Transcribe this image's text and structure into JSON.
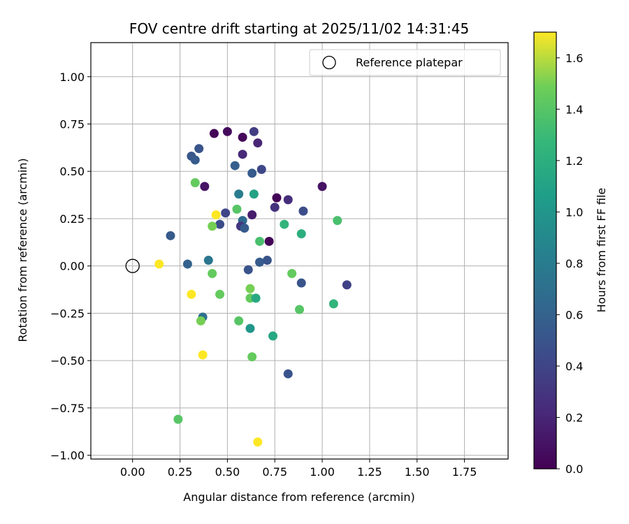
{
  "chart_data": {
    "type": "scatter",
    "title": "FOV centre drift starting at 2025/11/02 14:31:45",
    "xlabel": "Angular distance from reference (arcmin)",
    "ylabel": "Rotation from reference (arcmin)",
    "xlim": [
      -0.22,
      1.98
    ],
    "ylim": [
      -1.02,
      1.18
    ],
    "xticks": [
      0.0,
      0.25,
      0.5,
      0.75,
      1.0,
      1.25,
      1.5,
      1.75
    ],
    "xtick_labels": [
      "0.00",
      "0.25",
      "0.50",
      "0.75",
      "1.00",
      "1.25",
      "1.50",
      "1.75"
    ],
    "yticks": [
      -1.0,
      -0.75,
      -0.5,
      -0.25,
      0.0,
      0.25,
      0.5,
      0.75,
      1.0
    ],
    "ytick_labels": [
      "−1.00",
      "−0.75",
      "−0.50",
      "−0.25",
      "0.00",
      "0.25",
      "0.50",
      "0.75",
      "1.00"
    ],
    "grid": true,
    "legend": {
      "placement": "top-right",
      "entries": [
        "Reference platepar"
      ]
    },
    "reference_point": {
      "x": 0.0,
      "y": 0.0,
      "label": "Reference platepar"
    },
    "colorbar": {
      "label": "Hours from first FF file",
      "colormap": "viridis",
      "range": [
        0.0,
        1.7
      ],
      "ticks": [
        0.0,
        0.2,
        0.4,
        0.6,
        0.8,
        1.0,
        1.2,
        1.4,
        1.6
      ],
      "tick_labels": [
        "0.0",
        "0.2",
        "0.4",
        "0.6",
        "0.8",
        "1.0",
        "1.2",
        "1.4",
        "1.6"
      ]
    },
    "points": [
      {
        "x": 0.43,
        "y": 0.7,
        "hours": 0.02
      },
      {
        "x": 0.5,
        "y": 0.71,
        "hours": 0.05
      },
      {
        "x": 0.58,
        "y": 0.68,
        "hours": 0.04
      },
      {
        "x": 0.64,
        "y": 0.71,
        "hours": 0.35
      },
      {
        "x": 0.66,
        "y": 0.65,
        "hours": 0.2
      },
      {
        "x": 0.58,
        "y": 0.59,
        "hours": 0.22
      },
      {
        "x": 0.35,
        "y": 0.62,
        "hours": 0.5
      },
      {
        "x": 0.31,
        "y": 0.58,
        "hours": 0.52
      },
      {
        "x": 0.33,
        "y": 0.56,
        "hours": 0.55
      },
      {
        "x": 0.54,
        "y": 0.53,
        "hours": 0.58
      },
      {
        "x": 0.63,
        "y": 0.49,
        "hours": 0.55
      },
      {
        "x": 0.68,
        "y": 0.51,
        "hours": 0.42
      },
      {
        "x": 0.33,
        "y": 0.44,
        "hours": 1.45
      },
      {
        "x": 0.38,
        "y": 0.42,
        "hours": 0.1
      },
      {
        "x": 1.0,
        "y": 0.42,
        "hours": 0.1
      },
      {
        "x": 0.56,
        "y": 0.38,
        "hours": 0.8
      },
      {
        "x": 0.64,
        "y": 0.38,
        "hours": 1.1
      },
      {
        "x": 0.76,
        "y": 0.36,
        "hours": 0.02
      },
      {
        "x": 0.82,
        "y": 0.35,
        "hours": 0.25
      },
      {
        "x": 0.75,
        "y": 0.31,
        "hours": 0.28
      },
      {
        "x": 0.9,
        "y": 0.29,
        "hours": 0.45
      },
      {
        "x": 0.55,
        "y": 0.3,
        "hours": 1.4
      },
      {
        "x": 0.49,
        "y": 0.28,
        "hours": 0.4
      },
      {
        "x": 0.44,
        "y": 0.27,
        "hours": 1.7
      },
      {
        "x": 0.63,
        "y": 0.27,
        "hours": 0.15
      },
      {
        "x": 0.58,
        "y": 0.24,
        "hours": 0.65
      },
      {
        "x": 0.46,
        "y": 0.22,
        "hours": 0.45
      },
      {
        "x": 0.42,
        "y": 0.21,
        "hours": 1.5
      },
      {
        "x": 0.57,
        "y": 0.21,
        "hours": 0.3
      },
      {
        "x": 0.59,
        "y": 0.2,
        "hours": 0.55
      },
      {
        "x": 0.8,
        "y": 0.22,
        "hours": 1.25
      },
      {
        "x": 1.08,
        "y": 0.24,
        "hours": 1.35
      },
      {
        "x": 0.89,
        "y": 0.17,
        "hours": 1.2
      },
      {
        "x": 0.2,
        "y": 0.16,
        "hours": 0.55
      },
      {
        "x": 0.67,
        "y": 0.13,
        "hours": 1.35
      },
      {
        "x": 0.72,
        "y": 0.13,
        "hours": 0.02
      },
      {
        "x": 0.14,
        "y": 0.01,
        "hours": 1.7
      },
      {
        "x": 0.29,
        "y": 0.01,
        "hours": 0.6
      },
      {
        "x": 0.4,
        "y": 0.03,
        "hours": 0.75
      },
      {
        "x": 0.61,
        "y": -0.02,
        "hours": 0.5
      },
      {
        "x": 0.67,
        "y": 0.02,
        "hours": 0.55
      },
      {
        "x": 0.71,
        "y": 0.03,
        "hours": 0.5
      },
      {
        "x": 0.42,
        "y": -0.04,
        "hours": 1.45
      },
      {
        "x": 0.84,
        "y": -0.04,
        "hours": 1.45
      },
      {
        "x": 0.89,
        "y": -0.09,
        "hours": 0.5
      },
      {
        "x": 1.13,
        "y": -0.1,
        "hours": 0.38
      },
      {
        "x": 0.31,
        "y": -0.15,
        "hours": 1.7
      },
      {
        "x": 0.46,
        "y": -0.15,
        "hours": 1.45
      },
      {
        "x": 0.62,
        "y": -0.12,
        "hours": 1.5
      },
      {
        "x": 0.62,
        "y": -0.17,
        "hours": 1.45
      },
      {
        "x": 0.65,
        "y": -0.17,
        "hours": 1.15
      },
      {
        "x": 1.06,
        "y": -0.2,
        "hours": 1.25
      },
      {
        "x": 0.88,
        "y": -0.23,
        "hours": 1.4
      },
      {
        "x": 0.37,
        "y": -0.27,
        "hours": 0.7
      },
      {
        "x": 0.36,
        "y": -0.29,
        "hours": 1.5
      },
      {
        "x": 0.56,
        "y": -0.29,
        "hours": 1.4
      },
      {
        "x": 0.62,
        "y": -0.33,
        "hours": 1.0
      },
      {
        "x": 0.74,
        "y": -0.37,
        "hours": 1.15
      },
      {
        "x": 0.37,
        "y": -0.47,
        "hours": 1.7
      },
      {
        "x": 0.63,
        "y": -0.48,
        "hours": 1.45
      },
      {
        "x": 0.82,
        "y": -0.57,
        "hours": 0.5
      },
      {
        "x": 0.24,
        "y": -0.81,
        "hours": 1.4
      },
      {
        "x": 0.66,
        "y": -0.93,
        "hours": 1.7
      }
    ]
  }
}
